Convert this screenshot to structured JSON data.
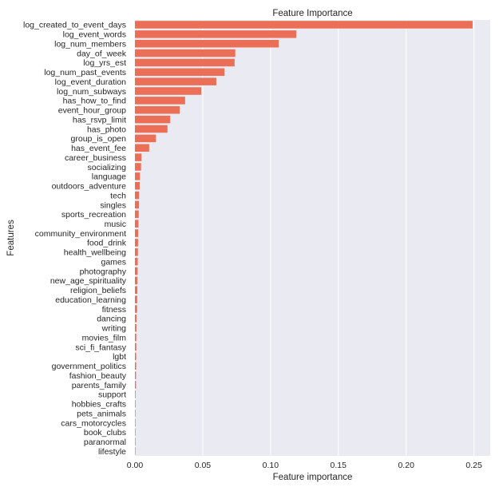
{
  "chart_data": {
    "type": "bar",
    "orientation": "horizontal",
    "title": "Feature Importance",
    "xlabel": "Feature importance",
    "ylabel": "Features",
    "xlim": [
      0,
      0.262
    ],
    "xticks": [
      0.0,
      0.05,
      0.1,
      0.15,
      0.2,
      0.25
    ],
    "xtick_labels": [
      "0.00",
      "0.05",
      "0.10",
      "0.15",
      "0.20",
      "0.25"
    ],
    "grid": true,
    "bar_color": "#EB6E56",
    "background_color": "#EAEAF2",
    "categories": [
      "log_created_to_event_days",
      "log_event_words",
      "log_num_members",
      "day_of_week",
      "log_yrs_est",
      "log_num_past_events",
      "log_event_duration",
      "log_num_subways",
      "has_how_to_find",
      "event_hour_group",
      "has_rsvp_limit",
      "has_photo",
      "group_is_open",
      "has_event_fee",
      "career_business",
      "socializing",
      "language",
      "outdoors_adventure",
      "tech",
      "singles",
      "sports_recreation",
      "music",
      "community_environment",
      "food_drink",
      "health_wellbeing",
      "games",
      "photography",
      "new_age_spirituality",
      "religion_beliefs",
      "education_learning",
      "fitness",
      "dancing",
      "writing",
      "movies_film",
      "sci_fi_fantasy",
      "lgbt",
      "government_politics",
      "fashion_beauty",
      "parents_family",
      "support",
      "hobbies_crafts",
      "pets_animals",
      "cars_motorcycles",
      "book_clubs",
      "paranormal",
      "lifestyle"
    ],
    "values": [
      0.249,
      0.119,
      0.106,
      0.074,
      0.0735,
      0.066,
      0.06,
      0.049,
      0.037,
      0.033,
      0.026,
      0.024,
      0.0155,
      0.0105,
      0.0048,
      0.0045,
      0.0037,
      0.0035,
      0.0031,
      0.003,
      0.0028,
      0.0026,
      0.0024,
      0.0023,
      0.0022,
      0.0021,
      0.002,
      0.0019,
      0.0018,
      0.0017,
      0.0016,
      0.0012,
      0.0011,
      0.001,
      0.001,
      0.0009,
      0.0009,
      0.0008,
      0.0008,
      0.0004,
      0.0004,
      0.0003,
      0.0003,
      0.0002,
      0.0001,
      0.0001
    ]
  }
}
